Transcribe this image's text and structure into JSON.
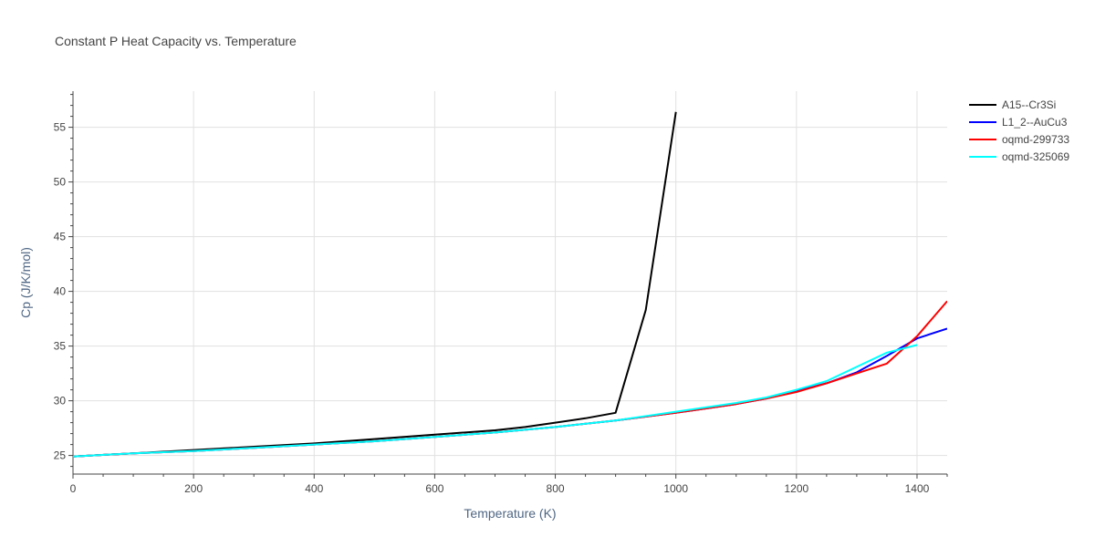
{
  "chart_data": {
    "type": "line",
    "title": "Constant P Heat Capacity vs. Temperature",
    "xlabel": "Temperature (K)",
    "ylabel": "Cp (J/K/mol)",
    "xlim": [
      0,
      1450
    ],
    "ylim": [
      23.3,
      58.3
    ],
    "x_ticks": [
      0,
      200,
      400,
      600,
      800,
      1000,
      1200,
      1400
    ],
    "y_ticks": [
      25,
      30,
      35,
      40,
      45,
      50,
      55
    ],
    "grid": true,
    "legend_position": "top-right",
    "series": [
      {
        "name": "A15--Cr3Si",
        "color": "#000000",
        "x": [
          0,
          100,
          200,
          300,
          400,
          500,
          600,
          700,
          750,
          800,
          850,
          900,
          950,
          1000
        ],
        "y": [
          24.9,
          25.2,
          25.5,
          25.8,
          26.1,
          26.5,
          26.9,
          27.3,
          27.6,
          28.0,
          28.4,
          28.9,
          38.3,
          56.4
        ]
      },
      {
        "name": "L1_2--AuCu3",
        "color": "#0000ff",
        "x": [
          0,
          100,
          200,
          300,
          400,
          500,
          600,
          700,
          800,
          900,
          1000,
          1100,
          1150,
          1200,
          1250,
          1300,
          1350,
          1400,
          1450
        ],
        "y": [
          24.9,
          25.2,
          25.4,
          25.7,
          26.0,
          26.3,
          26.7,
          27.1,
          27.6,
          28.2,
          28.9,
          29.7,
          30.2,
          30.9,
          31.6,
          32.6,
          34.1,
          35.7,
          36.6
        ]
      },
      {
        "name": "oqmd-299733",
        "color": "#ff0000",
        "x": [
          0,
          100,
          200,
          300,
          400,
          500,
          600,
          700,
          800,
          900,
          1000,
          1100,
          1150,
          1200,
          1250,
          1300,
          1350,
          1400,
          1450
        ],
        "y": [
          24.9,
          25.2,
          25.4,
          25.7,
          26.0,
          26.3,
          26.7,
          27.1,
          27.6,
          28.2,
          28.9,
          29.7,
          30.2,
          30.8,
          31.6,
          32.5,
          33.4,
          35.9,
          39.1
        ]
      },
      {
        "name": "oqmd-325069",
        "color": "#00ffff",
        "x": [
          0,
          100,
          200,
          300,
          400,
          500,
          600,
          700,
          800,
          900,
          1000,
          1100,
          1150,
          1200,
          1250,
          1300,
          1350,
          1400
        ],
        "y": [
          24.9,
          25.2,
          25.4,
          25.7,
          26.0,
          26.3,
          26.7,
          27.1,
          27.6,
          28.2,
          29.0,
          29.8,
          30.3,
          31.0,
          31.8,
          33.1,
          34.4,
          35.1
        ]
      }
    ]
  }
}
